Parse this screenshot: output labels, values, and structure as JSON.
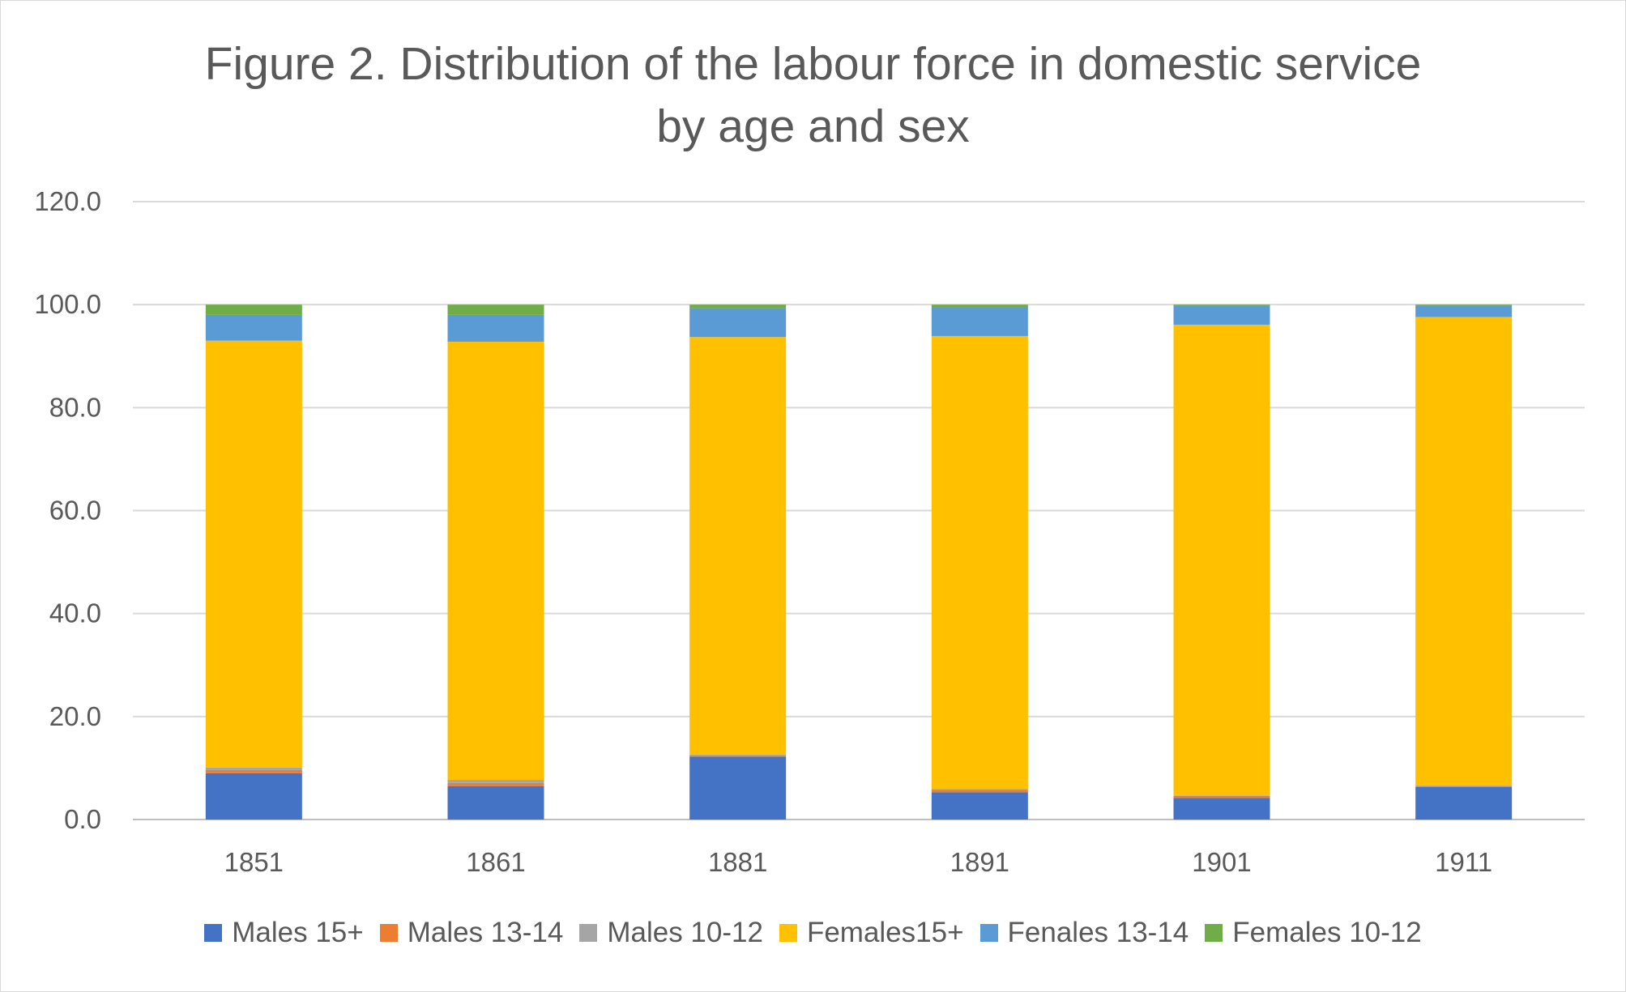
{
  "chart_data": {
    "type": "bar",
    "stacked": true,
    "title": "Figure 2. Distribution of the labour force in domestic service by age and sex",
    "title_lines": [
      "Figure 2. Distribution of the labour force in domestic service",
      "by age and sex"
    ],
    "categories": [
      "1851",
      "1861",
      "1881",
      "1891",
      "1901",
      "1911"
    ],
    "ylim": [
      0,
      120
    ],
    "yticks": [
      0,
      20,
      40,
      60,
      80,
      100,
      120
    ],
    "ytick_labels": [
      "0.0",
      "20.0",
      "40.0",
      "60.0",
      "80.0",
      "100.0",
      "120.0"
    ],
    "grid": true,
    "legend_position": "bottom",
    "series": [
      {
        "name": "Males 15+",
        "color": "#4472C4",
        "values": [
          9.0,
          6.5,
          12.2,
          5.3,
          4.2,
          6.3
        ]
      },
      {
        "name": "Males 13-14",
        "color": "#ED7D31",
        "values": [
          0.6,
          0.6,
          0.2,
          0.5,
          0.4,
          0.2
        ]
      },
      {
        "name": "Males 10-12",
        "color": "#A5A5A5",
        "values": [
          0.5,
          0.6,
          0.2,
          0.1,
          0.1,
          0.1
        ]
      },
      {
        "name": "Females15+",
        "color": "#FFC000",
        "values": [
          82.9,
          85.1,
          81.1,
          88.0,
          91.4,
          91.0
        ]
      },
      {
        "name": "Fenales 13-14",
        "color": "#5B9BD5",
        "values": [
          5.0,
          5.2,
          5.6,
          5.5,
          3.7,
          2.2
        ]
      },
      {
        "name": "Females 10-12",
        "color": "#70AD47",
        "values": [
          2.0,
          2.0,
          0.7,
          0.6,
          0.2,
          0.2
        ]
      }
    ]
  }
}
